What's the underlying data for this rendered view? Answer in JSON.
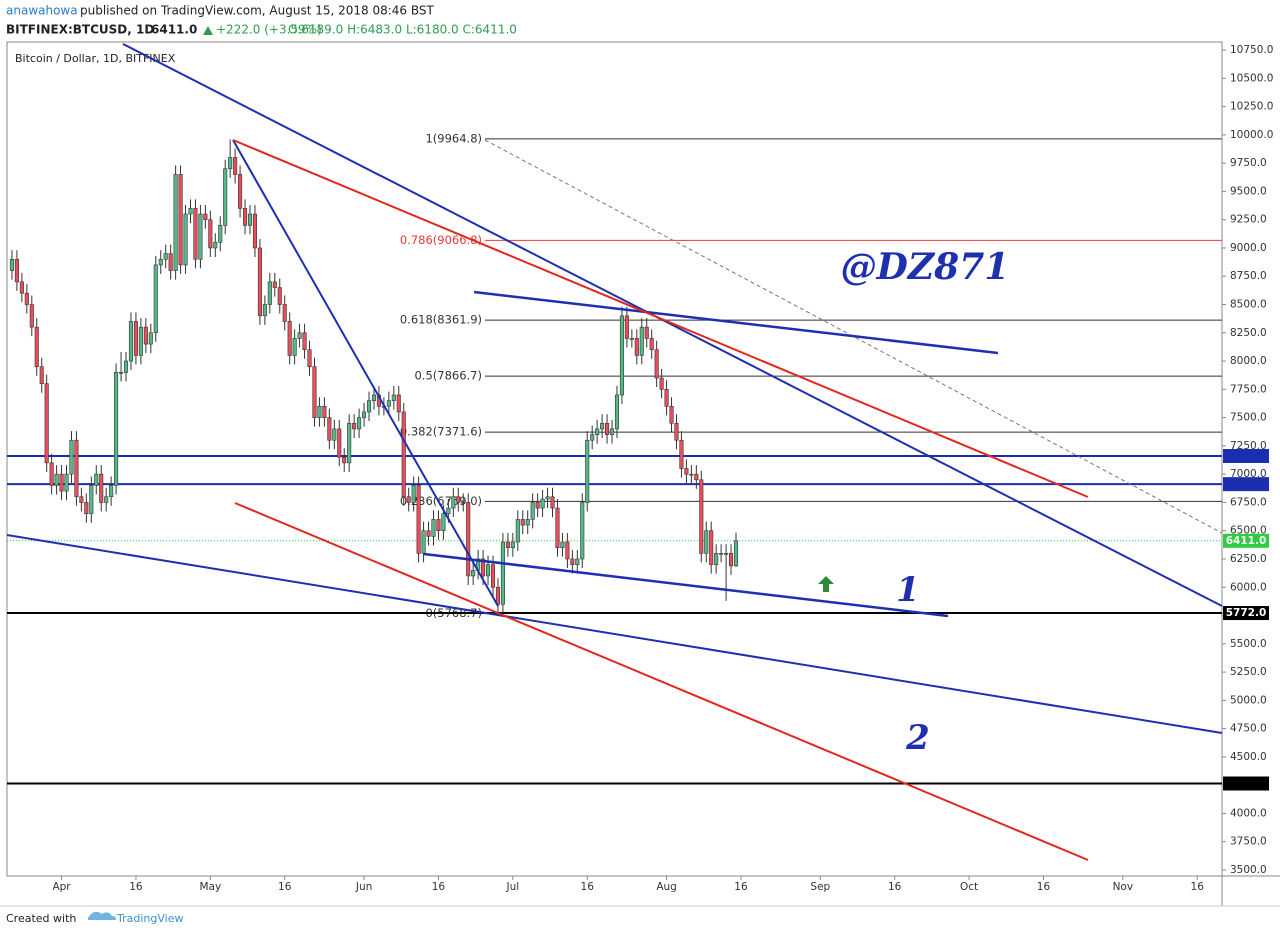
{
  "header": {
    "author": "anawahowa",
    "published": "published on TradingView.com, August 15, 2018 08:46 BST",
    "symbol": "BITFINEX:BTCUSD, 1D",
    "last": "6411.0",
    "change": "+222.0 (+3.59%)",
    "ohlc": "O:6189.0 H:6483.0 L:6180.0 C:6411.0"
  },
  "footer": {
    "created": "Created with",
    "brand": "TradingView"
  },
  "chart_data": {
    "type": "candlestick",
    "title": "Bitcoin / Dollar, 1D, BITFINEX",
    "up_color": "#53b987",
    "down_color": "#eb4d5c",
    "xlim": [
      -11,
      234
    ],
    "ylim": [
      3447,
      10821
    ],
    "grid": false,
    "xticks": [
      {
        "value": 0,
        "label": "Apr"
      },
      {
        "value": 15,
        "label": "16"
      },
      {
        "value": 30,
        "label": "May"
      },
      {
        "value": 45,
        "label": "16"
      },
      {
        "value": 61,
        "label": "Jun"
      },
      {
        "value": 76,
        "label": "16"
      },
      {
        "value": 91,
        "label": "Jul"
      },
      {
        "value": 106,
        "label": "16"
      },
      {
        "value": 122,
        "label": "Aug"
      },
      {
        "value": 137,
        "label": "16"
      },
      {
        "value": 153,
        "label": "Sep"
      },
      {
        "value": 168,
        "label": "16"
      },
      {
        "value": 183,
        "label": "Oct"
      },
      {
        "value": 198,
        "label": "16"
      },
      {
        "value": 214,
        "label": "Nov"
      },
      {
        "value": 229,
        "label": "16"
      }
    ],
    "yticks": [
      {
        "value": 3500,
        "label": "3500.0"
      },
      {
        "value": 3750,
        "label": "3750.0"
      },
      {
        "value": 4000,
        "label": "4000.0"
      },
      {
        "value": 4250,
        "label": "4250.0"
      },
      {
        "value": 4500,
        "label": "4500.0"
      },
      {
        "value": 4750,
        "label": "4750.0"
      },
      {
        "value": 5000,
        "label": "5000.0"
      },
      {
        "value": 5250,
        "label": "5250.0"
      },
      {
        "value": 5500,
        "label": "5500.0"
      },
      {
        "value": 5750,
        "label": "5750.0"
      },
      {
        "value": 6000,
        "label": "6000.0"
      },
      {
        "value": 6250,
        "label": "6250.0"
      },
      {
        "value": 6500,
        "label": "6500.0"
      },
      {
        "value": 6750,
        "label": "6750.0"
      },
      {
        "value": 7000,
        "label": "7000.0"
      },
      {
        "value": 7250,
        "label": "7250.0"
      },
      {
        "value": 7500,
        "label": "7500.0"
      },
      {
        "value": 7750,
        "label": "7750.0"
      },
      {
        "value": 8000,
        "label": "8000.0"
      },
      {
        "value": 8250,
        "label": "8250.0"
      },
      {
        "value": 8500,
        "label": "8500.0"
      },
      {
        "value": 8750,
        "label": "8750.0"
      },
      {
        "value": 9000,
        "label": "9000.0"
      },
      {
        "value": 9250,
        "label": "9250.0"
      },
      {
        "value": 9500,
        "label": "9500.0"
      },
      {
        "value": 9750,
        "label": "9750.0"
      },
      {
        "value": 10000,
        "label": "10000.0"
      },
      {
        "value": 10250,
        "label": "10250.0"
      },
      {
        "value": 10500,
        "label": "10500.0"
      },
      {
        "value": 10750,
        "label": "10750.0"
      }
    ],
    "levels": [
      {
        "value": 7160.4,
        "color": "#1a2fb0"
      },
      {
        "value": 6911.7,
        "color": "#1a2fb0"
      },
      {
        "value": 5772,
        "label": "5772.0",
        "color": "#000000"
      },
      {
        "value": 4264.7,
        "color": "#000000"
      }
    ],
    "last_price": {
      "value": 6411,
      "label": "6411.0",
      "color": "#2ecc40"
    },
    "fib": [
      {
        "value": 9964.8,
        "label": "1(9964.8)",
        "color": "#333333"
      },
      {
        "value": 9066.8,
        "label": "0.786(9066.8)",
        "color": "#e53935"
      },
      {
        "value": 8361.9,
        "label": "0.618(8361.9)",
        "color": "#333333"
      },
      {
        "value": 7866.7,
        "label": "0.5(7866.7)",
        "color": "#333333"
      },
      {
        "value": 7371.6,
        "label": "0.382(7371.6)",
        "color": "#333333"
      },
      {
        "value": 6759,
        "label": "0.236(6759.0)",
        "color": "#333333"
      },
      {
        "value": 5768.7,
        "label": "0(5768.7)",
        "color": "#333333"
      }
    ],
    "annotations": [
      "@DZ871",
      "1",
      "2"
    ],
    "x": [
      -10,
      -9,
      -8,
      -7,
      -6,
      -5,
      -4,
      -3,
      -2,
      -1,
      0,
      1,
      2,
      3,
      4,
      5,
      6,
      7,
      8,
      9,
      10,
      11,
      12,
      13,
      14,
      15,
      16,
      17,
      18,
      19,
      20,
      21,
      22,
      23,
      24,
      25,
      26,
      27,
      28,
      29,
      30,
      31,
      32,
      33,
      34,
      35,
      36,
      37,
      38,
      39,
      40,
      41,
      42,
      43,
      44,
      45,
      46,
      47,
      48,
      49,
      50,
      51,
      52,
      53,
      54,
      55,
      56,
      57,
      58,
      59,
      60,
      61,
      62,
      63,
      64,
      65,
      66,
      67,
      68,
      69,
      70,
      71,
      72,
      73,
      74,
      75,
      76,
      77,
      78,
      79,
      80,
      81,
      82,
      83,
      84,
      85,
      86,
      87,
      88,
      89,
      90,
      91,
      92,
      93,
      94,
      95,
      96,
      97,
      98,
      99,
      100,
      101,
      102,
      103,
      104,
      105,
      106,
      107,
      108,
      109,
      110,
      111,
      112,
      113,
      114,
      115,
      116,
      117,
      118,
      119,
      120,
      121,
      122,
      123,
      124,
      125,
      126,
      127,
      128,
      129,
      130,
      131,
      132,
      133,
      134,
      135,
      136
    ],
    "candles": [
      [
        8800,
        8980,
        8720,
        8900
      ],
      [
        8900,
        8980,
        8620,
        8700
      ],
      [
        8700,
        8780,
        8520,
        8600
      ],
      [
        8600,
        8680,
        8420,
        8500
      ],
      [
        8500,
        8580,
        8220,
        8300
      ],
      [
        8300,
        8380,
        7870,
        7950
      ],
      [
        7950,
        8030,
        7720,
        7800
      ],
      [
        7800,
        7880,
        7020,
        7100
      ],
      [
        7100,
        7180,
        6820,
        6900
      ],
      [
        6900,
        7080,
        6820,
        7000
      ],
      [
        7000,
        7080,
        6770,
        6850
      ],
      [
        6850,
        7080,
        6770,
        7000
      ],
      [
        7000,
        7380,
        6920,
        7300
      ],
      [
        7300,
        7380,
        6720,
        6800
      ],
      [
        6800,
        6880,
        6670,
        6750
      ],
      [
        6750,
        6830,
        6570,
        6650
      ],
      [
        6650,
        6980,
        6570,
        6900
      ],
      [
        6900,
        7080,
        6820,
        7000
      ],
      [
        7000,
        7080,
        6670,
        6750
      ],
      [
        6750,
        6880,
        6670,
        6800
      ],
      [
        6800,
        6980,
        6720,
        6900
      ],
      [
        6900,
        7980,
        6820,
        7900
      ],
      [
        7900,
        8080,
        7820,
        7900
      ],
      [
        7900,
        8080,
        7820,
        8000
      ],
      [
        8000,
        8430,
        7920,
        8350
      ],
      [
        8350,
        8430,
        7970,
        8050
      ],
      [
        8050,
        8380,
        7970,
        8300
      ],
      [
        8300,
        8380,
        8070,
        8150
      ],
      [
        8150,
        8330,
        8070,
        8250
      ],
      [
        8250,
        8930,
        8170,
        8850
      ],
      [
        8850,
        8980,
        8770,
        8900
      ],
      [
        8900,
        9030,
        8820,
        8950
      ],
      [
        8950,
        9030,
        8720,
        8800
      ],
      [
        8800,
        9730,
        8720,
        9650
      ],
      [
        9650,
        9730,
        8770,
        8850
      ],
      [
        8850,
        9380,
        8770,
        9300
      ],
      [
        9300,
        9430,
        9220,
        9350
      ],
      [
        9350,
        9430,
        8820,
        8900
      ],
      [
        8900,
        9380,
        8820,
        9300
      ],
      [
        9300,
        9380,
        9170,
        9250
      ],
      [
        9250,
        9330,
        8920,
        9000
      ],
      [
        9000,
        9130,
        8920,
        9050
      ],
      [
        9050,
        9280,
        8970,
        9200
      ],
      [
        9200,
        9780,
        9120,
        9700
      ],
      [
        9700,
        9960,
        9620,
        9800
      ],
      [
        9800,
        9880,
        9570,
        9650
      ],
      [
        9650,
        9730,
        9270,
        9350
      ],
      [
        9350,
        9430,
        9120,
        9200
      ],
      [
        9200,
        9380,
        9120,
        9300
      ],
      [
        9300,
        9380,
        8920,
        9000
      ],
      [
        9000,
        9080,
        8320,
        8400
      ],
      [
        8400,
        8580,
        8320,
        8500
      ],
      [
        8500,
        8780,
        8420,
        8700
      ],
      [
        8700,
        8780,
        8570,
        8650
      ],
      [
        8650,
        8730,
        8420,
        8500
      ],
      [
        8500,
        8580,
        8270,
        8350
      ],
      [
        8350,
        8430,
        7970,
        8050
      ],
      [
        8050,
        8280,
        7970,
        8200
      ],
      [
        8200,
        8330,
        8120,
        8250
      ],
      [
        8250,
        8330,
        8020,
        8100
      ],
      [
        8100,
        8180,
        7870,
        7950
      ],
      [
        7950,
        8030,
        7420,
        7500
      ],
      [
        7500,
        7680,
        7420,
        7600
      ],
      [
        7600,
        7680,
        7420,
        7500
      ],
      [
        7500,
        7580,
        7220,
        7300
      ],
      [
        7300,
        7480,
        7220,
        7400
      ],
      [
        7400,
        7480,
        7070,
        7150
      ],
      [
        7150,
        7230,
        7020,
        7100
      ],
      [
        7100,
        7530,
        7020,
        7450
      ],
      [
        7450,
        7530,
        7320,
        7400
      ],
      [
        7400,
        7580,
        7320,
        7500
      ],
      [
        7500,
        7630,
        7420,
        7550
      ],
      [
        7550,
        7730,
        7470,
        7650
      ],
      [
        7650,
        7780,
        7570,
        7700
      ],
      [
        7700,
        7780,
        7520,
        7600
      ],
      [
        7600,
        7680,
        7520,
        7600
      ],
      [
        7600,
        7730,
        7520,
        7650
      ],
      [
        7650,
        7780,
        7570,
        7700
      ],
      [
        7700,
        7780,
        7470,
        7550
      ],
      [
        7550,
        7630,
        6720,
        6800
      ],
      [
        6800,
        6880,
        6670,
        6750
      ],
      [
        6750,
        6980,
        6670,
        6900
      ],
      [
        6900,
        6980,
        6220,
        6300
      ],
      [
        6300,
        6580,
        6220,
        6500
      ],
      [
        6500,
        6580,
        6370,
        6450
      ],
      [
        6450,
        6680,
        6370,
        6600
      ],
      [
        6600,
        6680,
        6420,
        6500
      ],
      [
        6500,
        6730,
        6420,
        6650
      ],
      [
        6650,
        6780,
        6570,
        6700
      ],
      [
        6700,
        6880,
        6620,
        6800
      ],
      [
        6800,
        6880,
        6670,
        6750
      ],
      [
        6750,
        6830,
        6670,
        6750
      ],
      [
        6750,
        6830,
        6020,
        6100
      ],
      [
        6100,
        6230,
        6020,
        6150
      ],
      [
        6150,
        6330,
        6070,
        6250
      ],
      [
        6250,
        6330,
        6020,
        6100
      ],
      [
        6100,
        6280,
        6020,
        6200
      ],
      [
        6200,
        6280,
        5920,
        6000
      ],
      [
        6000,
        6080,
        5770,
        5850
      ],
      [
        5850,
        6480,
        5770,
        6400
      ],
      [
        6400,
        6480,
        6270,
        6350
      ],
      [
        6350,
        6480,
        6270,
        6400
      ],
      [
        6400,
        6680,
        6320,
        6600
      ],
      [
        6600,
        6680,
        6470,
        6550
      ],
      [
        6550,
        6680,
        6470,
        6600
      ],
      [
        6600,
        6830,
        6520,
        6750
      ],
      [
        6750,
        6830,
        6620,
        6700
      ],
      [
        6700,
        6860,
        6620,
        6780
      ],
      [
        6780,
        6880,
        6700,
        6800
      ],
      [
        6800,
        6880,
        6620,
        6700
      ],
      [
        6700,
        6780,
        6270,
        6350
      ],
      [
        6350,
        6480,
        6270,
        6400
      ],
      [
        6400,
        6480,
        6170,
        6250
      ],
      [
        6250,
        6330,
        6120,
        6200
      ],
      [
        6200,
        6330,
        6120,
        6250
      ],
      [
        6250,
        6830,
        6170,
        6750
      ],
      [
        6750,
        7380,
        6670,
        7300
      ],
      [
        7300,
        7430,
        7220,
        7350
      ],
      [
        7350,
        7480,
        7270,
        7400
      ],
      [
        7400,
        7530,
        7320,
        7450
      ],
      [
        7450,
        7530,
        7270,
        7350
      ],
      [
        7350,
        7480,
        7270,
        7400
      ],
      [
        7400,
        7780,
        7320,
        7700
      ],
      [
        7700,
        8480,
        7620,
        8400
      ],
      [
        8400,
        8480,
        8120,
        8200
      ],
      [
        8200,
        8280,
        8120,
        8200
      ],
      [
        8200,
        8280,
        7970,
        8050
      ],
      [
        8050,
        8380,
        7970,
        8300
      ],
      [
        8300,
        8380,
        8120,
        8200
      ],
      [
        8200,
        8280,
        8020,
        8100
      ],
      [
        8100,
        8180,
        7770,
        7850
      ],
      [
        7850,
        7930,
        7670,
        7750
      ],
      [
        7750,
        7830,
        7520,
        7600
      ],
      [
        7600,
        7680,
        7370,
        7450
      ],
      [
        7450,
        7530,
        7220,
        7300
      ],
      [
        7300,
        7380,
        6970,
        7050
      ],
      [
        7050,
        7130,
        6920,
        7000
      ],
      [
        7000,
        7080,
        6920,
        7000
      ],
      [
        7000,
        7080,
        6870,
        6950
      ],
      [
        6950,
        7030,
        6220,
        6300
      ],
      [
        6300,
        6580,
        6220,
        6500
      ],
      [
        6500,
        6580,
        6120,
        6200
      ],
      [
        6200,
        6380,
        6120,
        6300
      ],
      [
        6300,
        6380,
        6220,
        6300
      ],
      [
        6300,
        6380,
        5880,
        6300
      ],
      [
        6300,
        6380,
        6110,
        6189
      ],
      [
        6189,
        6483,
        6180,
        6411
      ]
    ]
  }
}
